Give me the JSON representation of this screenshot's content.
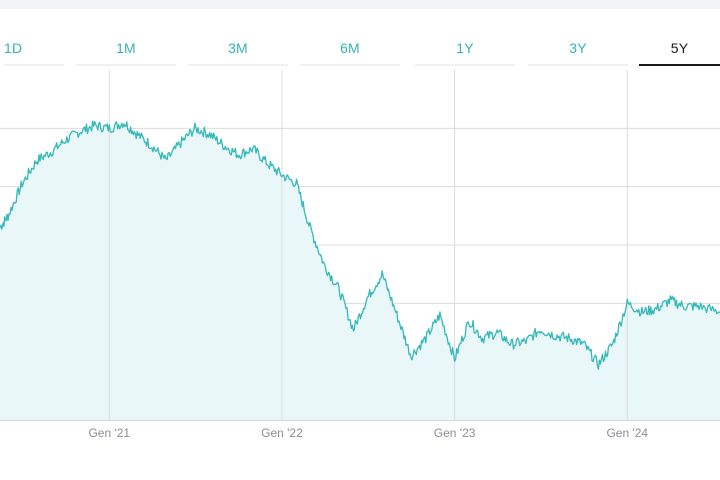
{
  "tabs": [
    {
      "label": "1D",
      "active": false
    },
    {
      "label": "1M",
      "active": false
    },
    {
      "label": "3M",
      "active": false
    },
    {
      "label": "6M",
      "active": false
    },
    {
      "label": "1Y",
      "active": false
    },
    {
      "label": "3Y",
      "active": false
    },
    {
      "label": "5Y",
      "active": true
    }
  ],
  "colors": {
    "accent": "#35b3b6",
    "line": "#35b8b8",
    "area": "#e9f7f8",
    "grid": "#d9dcdf",
    "active_tab": "#1b1b1b"
  },
  "chart_data": {
    "type": "area",
    "title": "",
    "xlabel": "",
    "ylabel": "",
    "x_tick_labels": [
      "Gen '21",
      "Gen '22",
      "Gen '23",
      "Gen '24"
    ],
    "x_tick_dates": [
      "2021-01-01",
      "2022-01-01",
      "2023-01-01",
      "2024-01-01"
    ],
    "x_range": [
      "2020-05-15",
      "2024-07-15"
    ],
    "y_range": [
      0,
      6
    ],
    "y_grid_levels": [
      1,
      2,
      3,
      4,
      5
    ],
    "grid": true,
    "legend": "none",
    "series": [
      {
        "x": [
          "2020-05-15",
          "2020-06-01",
          "2020-07-01",
          "2020-08-01",
          "2020-09-01",
          "2020-10-01",
          "2020-11-01",
          "2020-12-01",
          "2021-01-01",
          "2021-02-01",
          "2021-03-01",
          "2021-04-01",
          "2021-05-01",
          "2021-06-01",
          "2021-07-01",
          "2021-08-01",
          "2021-09-01",
          "2021-10-01",
          "2021-11-01",
          "2021-12-01",
          "2022-01-01",
          "2022-02-01",
          "2022-03-01",
          "2022-04-01",
          "2022-05-01",
          "2022-06-01",
          "2022-07-01",
          "2022-08-01",
          "2022-09-01",
          "2022-10-01",
          "2022-11-01",
          "2022-12-01",
          "2023-01-01",
          "2023-02-01",
          "2023-03-01",
          "2023-04-01",
          "2023-05-01",
          "2023-06-01",
          "2023-07-01",
          "2023-08-01",
          "2023-09-01",
          "2023-10-01",
          "2023-11-01",
          "2023-12-01",
          "2024-01-01",
          "2024-02-01",
          "2024-03-01",
          "2024-04-01",
          "2024-05-01",
          "2024-06-01",
          "2024-07-15"
        ],
        "y": [
          3.3,
          3.5,
          4.05,
          4.45,
          4.6,
          4.8,
          4.95,
          5.05,
          5.0,
          5.1,
          4.9,
          4.7,
          4.45,
          4.75,
          5.0,
          4.9,
          4.7,
          4.55,
          4.65,
          4.4,
          4.2,
          4.05,
          3.3,
          2.65,
          2.25,
          1.55,
          2.1,
          2.5,
          1.8,
          1.1,
          1.4,
          1.8,
          1.05,
          1.7,
          1.4,
          1.5,
          1.3,
          1.35,
          1.55,
          1.45,
          1.4,
          1.3,
          0.95,
          1.3,
          2.0,
          1.85,
          1.9,
          2.05,
          1.95,
          1.95,
          1.85
        ]
      }
    ]
  }
}
